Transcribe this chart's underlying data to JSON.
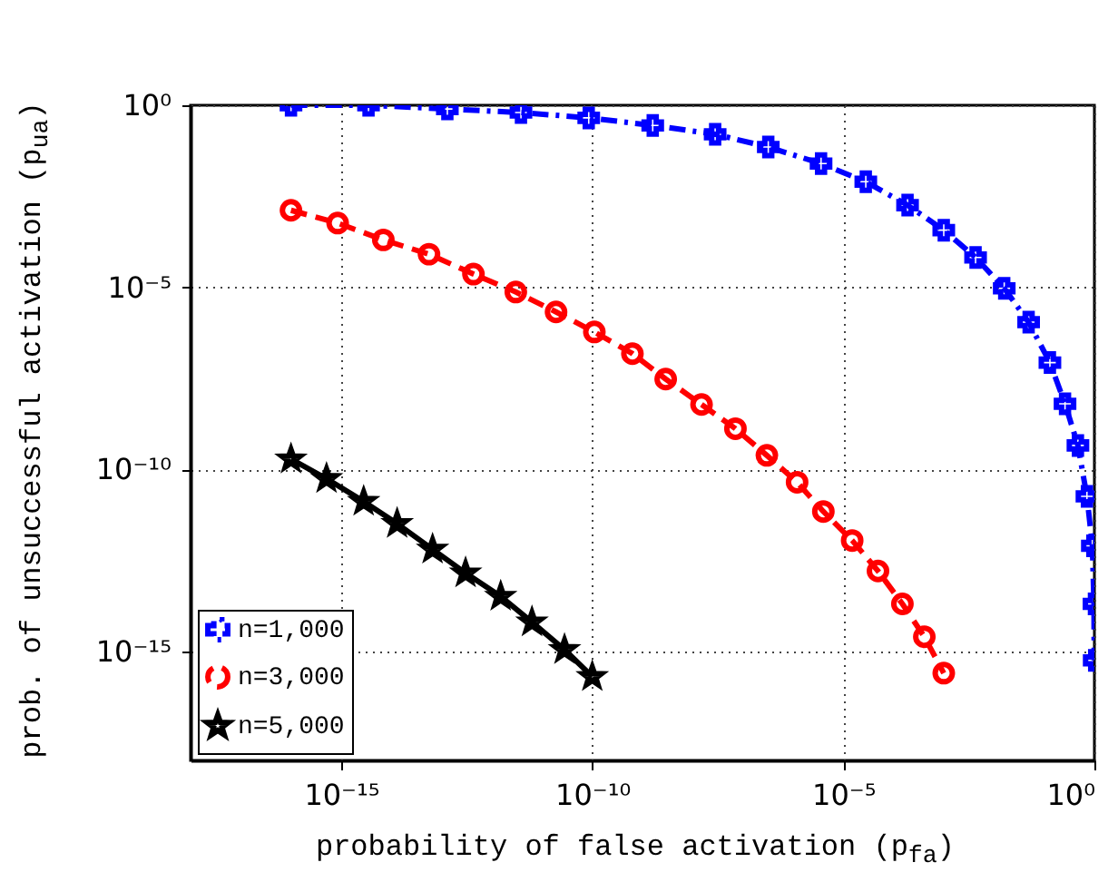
{
  "chart_data": {
    "type": "line",
    "xlabel": "probability of false activation (p$_{fa}$)",
    "ylabel": "prob. of unsuccessful activation (p$_{ua}$)",
    "log": "xy",
    "grid": true,
    "legend": "bottom left",
    "xlim": [
      1e-18,
      1
    ],
    "ylim": [
      1e-18,
      1
    ],
    "xticks": [
      {
        "value": 1e-15,
        "label": "10⁻¹⁵"
      },
      {
        "value": 1e-10,
        "label": "10⁻¹⁰"
      },
      {
        "value": 1e-05,
        "label": "10⁻⁵"
      },
      {
        "value": 1,
        "label": "10⁰"
      }
    ],
    "yticks": [
      {
        "value": 1e-15,
        "label": "10⁻¹⁵"
      },
      {
        "value": 1e-10,
        "label": "10⁻¹⁰"
      },
      {
        "value": 1e-05,
        "label": "10⁻⁵"
      },
      {
        "value": 1,
        "label": "10⁰"
      }
    ],
    "series": [
      {
        "name": "n=1,000",
        "color": "#0000ff",
        "marker": "cross",
        "line_style": "dashdot",
        "x": [
          1e-16,
          3.5e-15,
          1.3e-13,
          3.8e-12,
          8.5e-11,
          1.6e-09,
          2.8e-08,
          3.2e-07,
          3.6e-06,
          2.8e-05,
          0.00019,
          0.001,
          0.0043,
          0.016,
          0.049,
          0.13,
          0.26,
          0.47,
          0.71,
          0.91,
          0.98,
          0.99
        ],
        "values": [
          1,
          1,
          0.79,
          0.63,
          0.45,
          0.28,
          0.16,
          0.071,
          0.025,
          0.0079,
          0.0018,
          0.00037,
          6.6e-05,
          9.3e-06,
          1.1e-06,
          8.5e-08,
          6.3e-09,
          4.5e-10,
          1.8e-11,
          7.9e-13,
          2e-14,
          5.6e-16
        ]
      },
      {
        "name": "n=3,000",
        "color": "#ff0000",
        "marker": "circle",
        "line_style": "dashed",
        "x": [
          1e-16,
          8.5e-16,
          6.9e-15,
          5.6e-14,
          4.3e-13,
          3e-12,
          1.9e-11,
          1.1e-10,
          6.3e-10,
          2.9e-09,
          1.5e-08,
          7.1e-08,
          3e-07,
          1.2e-06,
          4e-06,
          1.5e-05,
          4.9e-05,
          0.00015,
          0.00041,
          0.001
        ],
        "values": [
          0.0013,
          0.00058,
          0.0002,
          8.1e-05,
          2.3e-05,
          7.4e-06,
          2.1e-06,
          5.9e-07,
          1.5e-07,
          3e-08,
          6e-09,
          1.3e-09,
          2.4e-10,
          4.4e-11,
          6.9e-12,
          1.1e-12,
          1.6e-13,
          2e-14,
          2.5e-15,
          2.5e-16
        ]
      },
      {
        "name": "n=5,000",
        "color": "#000000",
        "marker": "star",
        "line_style": "solid",
        "x": [
          1e-16,
          5.1e-16,
          2.8e-15,
          1.3e-14,
          6.6e-14,
          3e-13,
          1.5e-12,
          6.3e-12,
          2.8e-11,
          1e-10
        ],
        "values": [
          1.9e-10,
          5.5e-11,
          1.3e-11,
          3.2e-12,
          6.3e-13,
          1.4e-13,
          3.2e-14,
          6.3e-15,
          1.1e-15,
          2e-16
        ]
      }
    ]
  }
}
